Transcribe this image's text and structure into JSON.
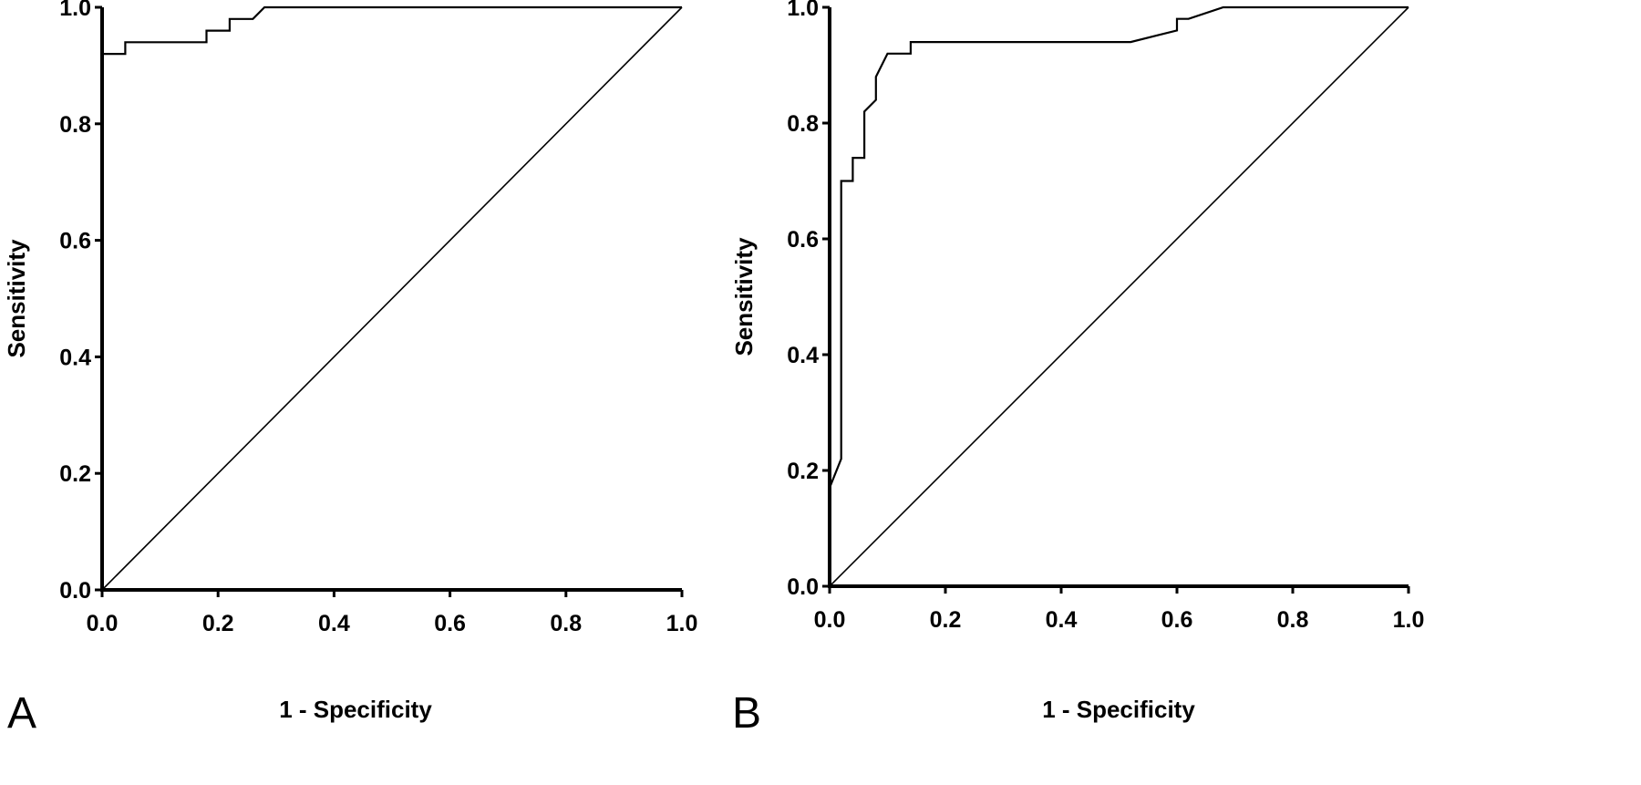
{
  "chart_data": [
    {
      "type": "line",
      "panel_label": "A",
      "xlabel": "1 - Specificity",
      "ylabel": "Sensitivity",
      "xlim": [
        0,
        1
      ],
      "ylim": [
        0,
        1
      ],
      "xticks": [
        "0.0",
        "0.2",
        "0.4",
        "0.6",
        "0.8",
        "1.0"
      ],
      "yticks": [
        "0.0",
        "0.2",
        "0.4",
        "0.6",
        "0.8",
        "1.0"
      ],
      "grid": false,
      "series": [
        {
          "role": "roc-curve",
          "x": [
            0,
            0,
            0.04,
            0.04,
            0.18,
            0.18,
            0.22,
            0.22,
            0.26,
            0.28,
            1.0
          ],
          "y": [
            0,
            0.92,
            0.92,
            0.94,
            0.94,
            0.96,
            0.96,
            0.98,
            0.98,
            1.0,
            1.0
          ]
        },
        {
          "role": "reference-line",
          "x": [
            0,
            1
          ],
          "y": [
            0,
            1
          ]
        }
      ]
    },
    {
      "type": "line",
      "panel_label": "B",
      "xlabel": "1 - Specificity",
      "ylabel": "Sensitivity",
      "xlim": [
        0,
        1
      ],
      "ylim": [
        0,
        1
      ],
      "xticks": [
        "0.0",
        "0.2",
        "0.4",
        "0.6",
        "0.8",
        "1.0"
      ],
      "yticks": [
        "0.0",
        "0.2",
        "0.4",
        "0.6",
        "0.8",
        "1.0"
      ],
      "grid": false,
      "series": [
        {
          "role": "roc-curve",
          "x": [
            0,
            0,
            0.02,
            0.02,
            0.04,
            0.04,
            0.06,
            0.06,
            0.08,
            0.08,
            0.1,
            0.14,
            0.14,
            0.52,
            0.6,
            0.6,
            0.62,
            0.68,
            1.0
          ],
          "y": [
            0,
            0.17,
            0.22,
            0.7,
            0.7,
            0.74,
            0.74,
            0.82,
            0.84,
            0.88,
            0.92,
            0.92,
            0.94,
            0.94,
            0.96,
            0.98,
            0.98,
            1.0,
            1.0
          ]
        },
        {
          "role": "reference-line",
          "x": [
            0,
            1
          ],
          "y": [
            0,
            1
          ]
        }
      ]
    }
  ]
}
